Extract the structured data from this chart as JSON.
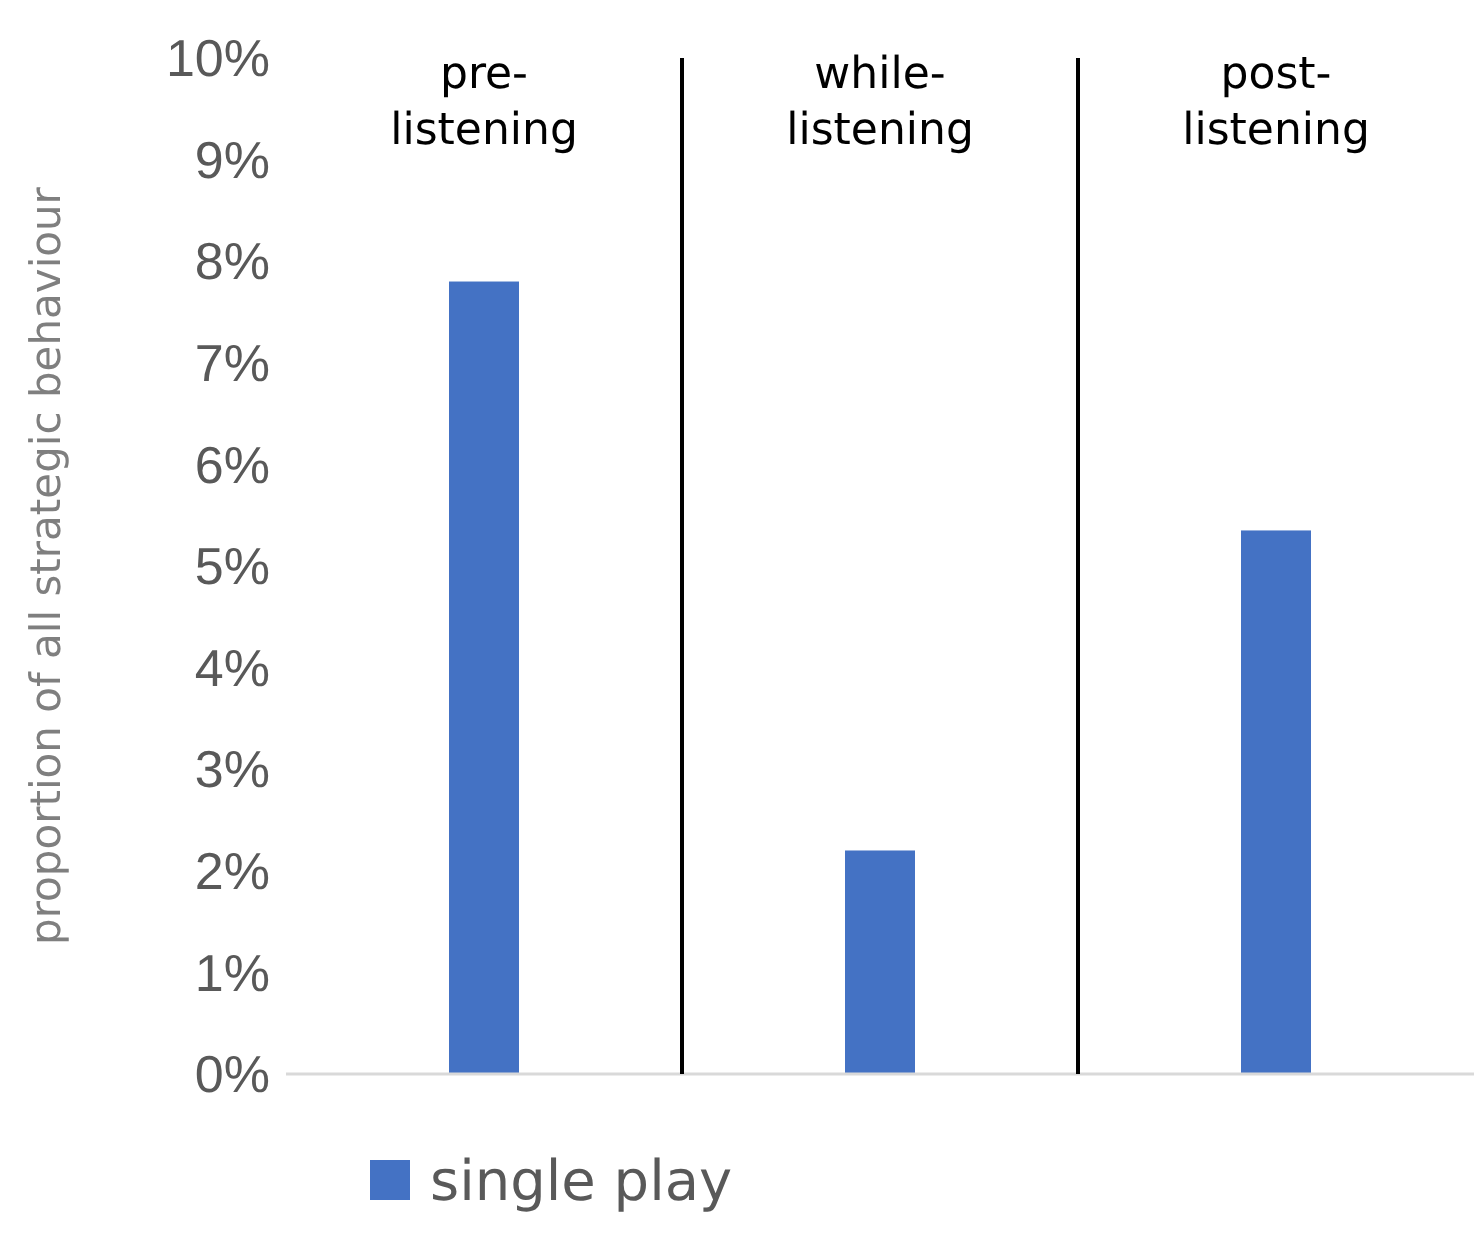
{
  "chart_data": {
    "type": "bar",
    "ylabel": "proportion of all strategic behaviour",
    "categories": [
      "pre-\nlistening",
      "while-\nlistening",
      "post-\nlistening"
    ],
    "series": [
      {
        "name": "single play",
        "color": "#4472c4",
        "values": [
          7.8,
          2.2,
          5.35
        ]
      }
    ],
    "ylim": [
      0,
      10
    ],
    "yticks": [
      {
        "value": 0,
        "label": "0%"
      },
      {
        "value": 1,
        "label": "1%"
      },
      {
        "value": 2,
        "label": "2%"
      },
      {
        "value": 3,
        "label": "3%"
      },
      {
        "value": 4,
        "label": "4%"
      },
      {
        "value": 5,
        "label": "5%"
      },
      {
        "value": 6,
        "label": "6%"
      },
      {
        "value": 7,
        "label": "7%"
      },
      {
        "value": 8,
        "label": "8%"
      },
      {
        "value": 9,
        "label": "9%"
      },
      {
        "value": 10,
        "label": "10%"
      }
    ],
    "legend": "bottom",
    "grid": false
  }
}
